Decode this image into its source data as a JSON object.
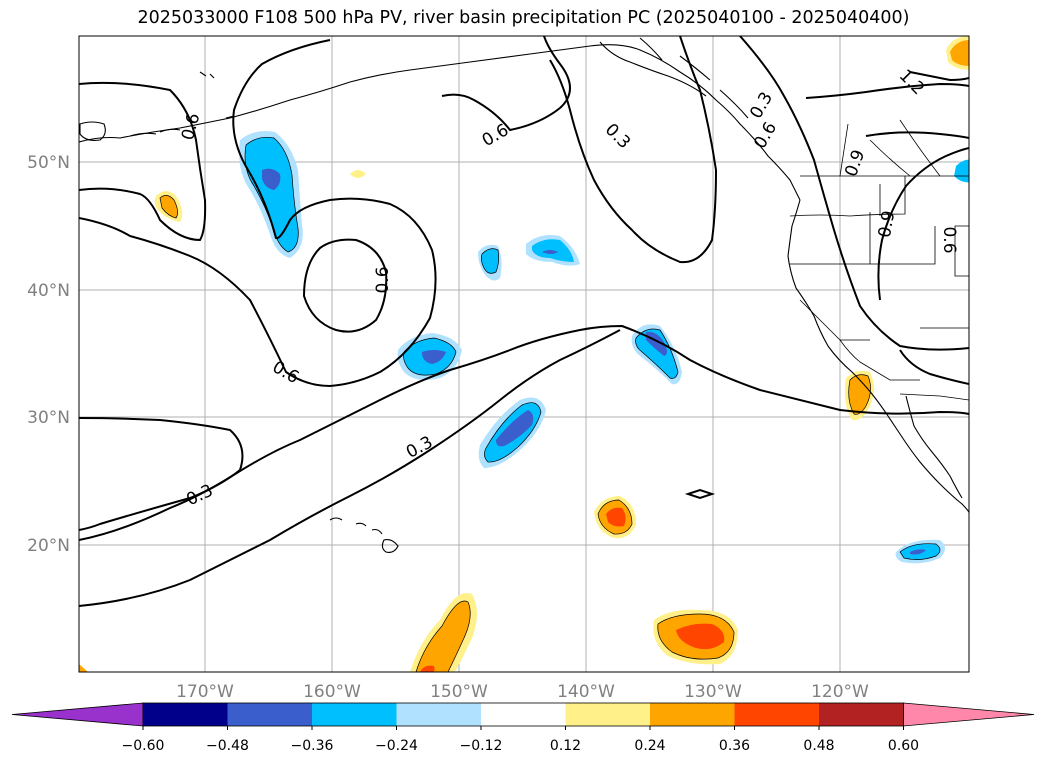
{
  "title": "2025033000 F108 500 hPa PV, river basin precipitation PC (2025040100 - 2025040400)",
  "lat_labels": [
    "50°N",
    "40°N",
    "30°N",
    "20°N"
  ],
  "lon_labels": [
    "170°W",
    "160°W",
    "150°W",
    "140°W",
    "130°W",
    "120°W"
  ],
  "contour_labels": [
    "0.6",
    "0.6",
    "0.3",
    "0.6",
    "0.6",
    "0.9",
    "0.6",
    "0.3",
    "0.9",
    "0.6",
    "0.3",
    "0.3",
    "1.2"
  ],
  "colorbar": {
    "tick_labels": [
      "−0.60",
      "−0.48",
      "−0.36",
      "−0.24",
      "−0.12",
      "0.12",
      "0.24",
      "0.36",
      "0.48",
      "0.60"
    ],
    "colors": [
      "#9932cc",
      "#00008b",
      "#3a5fcd",
      "#00bfff",
      "#b0e2ff",
      "#ffffff",
      "#fff08a",
      "#ffa500",
      "#ff4500",
      "#b22222",
      "#ff88aa"
    ]
  }
}
